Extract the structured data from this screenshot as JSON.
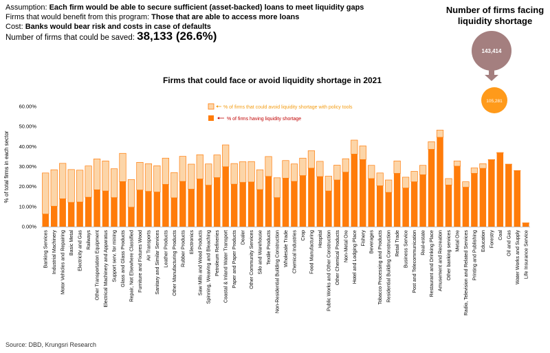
{
  "header": {
    "assumption_label": "Assumption: ",
    "assumption_text": "Each firm would be able to secure sufficient (asset-backed) loans to meet liquidity gaps",
    "benefit_label": "Firms that would benefit from this program: ",
    "benefit_text": "Those that are able to access more loans",
    "cost_label": "Cost: ",
    "cost_text": "Banks would bear risk and costs in case of defaults",
    "saved_label": "Number of firms that could be saved: ",
    "saved_value": "38,133 (26.6%)"
  },
  "side": {
    "title_line1": "Number of firms facing",
    "title_line2": "liquidity shortage",
    "big_circle_value": "143,414",
    "small_circle_value": "105,281"
  },
  "source": "Source: DBD, Krungsri Research",
  "colors": {
    "liquidity": "#FF7C0A",
    "avoid": "#FCD5A8",
    "avoid_text": "#F39C12",
    "liquidity_text": "#C00000",
    "circle_big": "#A47F7F",
    "circle_small": "#FF9A1A",
    "arrow": "#A47F7F"
  },
  "chart_data": {
    "type": "bar",
    "stacked": true,
    "title": "Firms that could face or avoid liquidity shortage in 2021",
    "ylabel": "% of total firms in each sector",
    "xlabel": "",
    "ylim": [
      0,
      0.6
    ],
    "yticks": [
      "0.00%",
      "10.00%",
      "20.00%",
      "30.00%",
      "40.00%",
      "50.00%",
      "60.00%"
    ],
    "grid": false,
    "legend_position": "top-center",
    "categories": [
      "Banking Services",
      "Industrial Machinery",
      "Motor Vehicles and Repairing",
      "Basic Metal",
      "Electricity and Gas",
      "Railways",
      "Other Transportation Equipment",
      "Electrical Machinery and Apparatus",
      "Support serv. for mining",
      "Glass and Glass Products",
      "Repair, Not Elsewhere Classified",
      "Furniture and Fixtures Wood",
      "Air Transports",
      "Sanitary and Similar Services",
      "Leather Products",
      "Other Manufacturing Products",
      "Rubber Products",
      "Electronics",
      "Saw Mills and Wood Products",
      "Spinning, Weaving and Bleaching",
      "Petroleum Refineries",
      "Coastal & Inland Water Transport",
      "Paper and Paper Products",
      "Dealer",
      "Other Community Services",
      "Silo and Warehouse",
      "Textile Products",
      "Non-Residential Building Construction",
      "Wholesale Trade",
      "Chemical Industries",
      "Crop",
      "Food Manufacturing",
      "Hospital",
      "Public Works and Other Construction",
      "Other Chemical Products",
      "Non-Metal Ore",
      "Hotel and Lodging Place",
      "Fishery",
      "Beverages",
      "Tobacco Processing and Products",
      "Residential Building Construction",
      "Retail Trade",
      "Business Service",
      "Post and Telecommunication",
      "Real-estate",
      "Restaurant and Drinking Place",
      "Amusement and Recreation",
      "Other banking services",
      "Metal Ore",
      "Radio, Television and Related Services",
      "Printing and Publishing",
      "Education",
      "Forestry",
      "Coal",
      "Oil and Gas",
      "Water Works and Supply",
      "Life Insurance Service"
    ],
    "series": [
      {
        "name": "% of firms having liquidity shortage",
        "values": [
          0.063,
          0.102,
          0.139,
          0.121,
          0.123,
          0.147,
          0.184,
          0.178,
          0.145,
          0.225,
          0.097,
          0.183,
          0.176,
          0.173,
          0.211,
          0.144,
          0.226,
          0.187,
          0.238,
          0.207,
          0.245,
          0.299,
          0.212,
          0.221,
          0.223,
          0.185,
          0.251,
          0.145,
          0.242,
          0.226,
          0.255,
          0.292,
          0.25,
          0.178,
          0.233,
          0.272,
          0.362,
          0.335,
          0.24,
          0.204,
          0.171,
          0.266,
          0.193,
          0.224,
          0.259,
          0.386,
          0.446,
          0.208,
          0.302,
          0.197,
          0.266,
          0.291,
          0.332,
          0.367,
          0.311,
          0.279,
          0.017
        ]
      },
      {
        "name": "% of firms that could avoid liquidity shortage with policy tools",
        "values": [
          0.205,
          0.182,
          0.177,
          0.164,
          0.159,
          0.156,
          0.154,
          0.15,
          0.144,
          0.141,
          0.138,
          0.138,
          0.138,
          0.131,
          0.131,
          0.126,
          0.125,
          0.125,
          0.121,
          0.106,
          0.113,
          0.109,
          0.103,
          0.103,
          0.102,
          0.099,
          0.099,
          0.099,
          0.088,
          0.087,
          0.087,
          0.087,
          0.076,
          0.074,
          0.074,
          0.067,
          0.07,
          0.068,
          0.066,
          0.064,
          0.062,
          0.062,
          0.054,
          0.052,
          0.047,
          0.038,
          0.036,
          0.032,
          0.026,
          0.027,
          0.027,
          0.023,
          0.003,
          0.003,
          0.001,
          0.001,
          0.002
        ]
      }
    ]
  }
}
